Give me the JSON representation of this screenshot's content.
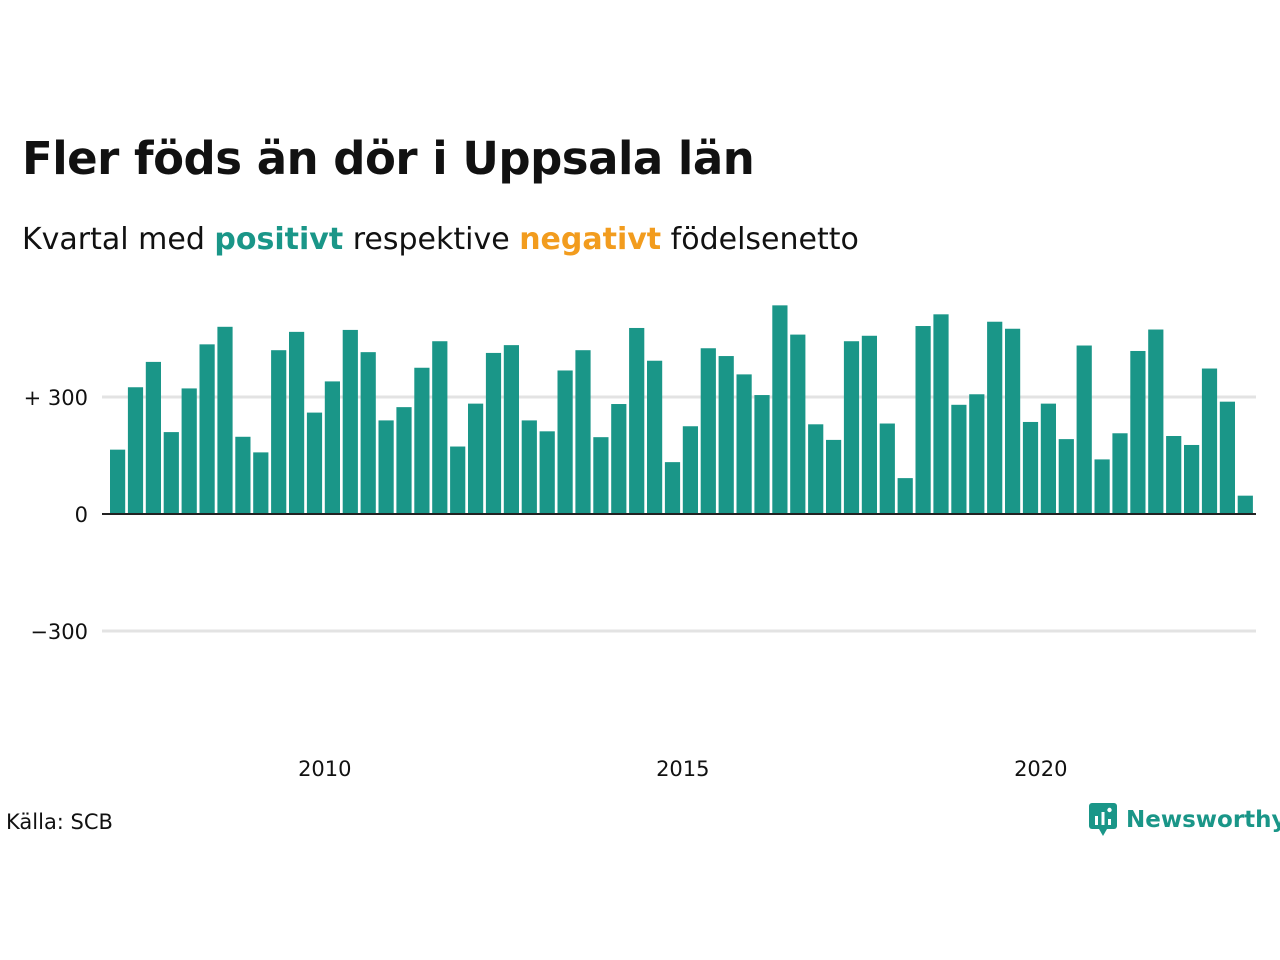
{
  "title": "Fler föds än dör i Uppsala län",
  "subtitle": {
    "prefix": "Kvartal med ",
    "positive": "positivt",
    "middle": " respektive ",
    "negative": "negativt",
    "suffix": " födelsenetto"
  },
  "source": "Källa: SCB",
  "brand": "Newsworthy",
  "colors": {
    "positive": "#1a9688",
    "negative": "#f29c1e",
    "grid": "#e3e3e3",
    "axis": "#222222"
  },
  "chart_data": {
    "type": "bar",
    "title": "Fler föds än dör i Uppsala län",
    "xlabel": "",
    "ylabel": "",
    "ylim": [
      -477,
      477
    ],
    "grid": true,
    "y_ticks": [
      {
        "value": 300,
        "label": "+ 300"
      },
      {
        "value": 0,
        "label": "0"
      },
      {
        "value": -300,
        "label": "−300"
      }
    ],
    "x_ticks": [
      {
        "value": 2010,
        "label": "2010"
      },
      {
        "value": 2015,
        "label": "2015"
      },
      {
        "value": 2020,
        "label": "2020"
      }
    ],
    "categories": [
      "2007 Q1",
      "2007 Q2",
      "2007 Q3",
      "2007 Q4",
      "2008 Q1",
      "2008 Q2",
      "2008 Q3",
      "2008 Q4",
      "2009 Q1",
      "2009 Q2",
      "2009 Q3",
      "2009 Q4",
      "2010 Q1",
      "2010 Q2",
      "2010 Q3",
      "2010 Q4",
      "2011 Q1",
      "2011 Q2",
      "2011 Q3",
      "2011 Q4",
      "2012 Q1",
      "2012 Q2",
      "2012 Q3",
      "2012 Q4",
      "2013 Q1",
      "2013 Q2",
      "2013 Q3",
      "2013 Q4",
      "2014 Q1",
      "2014 Q2",
      "2014 Q3",
      "2014 Q4",
      "2015 Q1",
      "2015 Q2",
      "2015 Q3",
      "2015 Q4",
      "2016 Q1",
      "2016 Q2",
      "2016 Q3",
      "2016 Q4",
      "2017 Q1",
      "2017 Q2",
      "2017 Q3",
      "2017 Q4",
      "2018 Q1",
      "2018 Q2",
      "2018 Q3",
      "2018 Q4",
      "2019 Q1",
      "2019 Q2",
      "2019 Q3",
      "2019 Q4",
      "2020 Q1",
      "2020 Q2",
      "2020 Q3",
      "2020 Q4",
      "2021 Q1",
      "2021 Q2",
      "2021 Q3",
      "2021 Q4",
      "2022 Q1",
      "2022 Q2",
      "2022 Q3",
      "2022 Q4",
      "2023 Q1"
    ],
    "values": [
      165,
      325,
      390,
      210,
      322,
      435,
      480,
      198,
      158,
      420,
      467,
      260,
      340,
      472,
      415,
      240,
      274,
      375,
      443,
      173,
      283,
      413,
      433,
      240,
      212,
      368,
      420,
      197,
      282,
      477,
      393,
      133,
      225,
      425,
      405,
      358,
      305,
      535,
      460,
      230,
      190,
      443,
      457,
      232,
      92,
      482,
      512,
      280,
      307,
      493,
      475,
      236,
      283,
      192,
      432,
      140,
      207,
      418,
      473,
      200,
      177,
      373,
      288,
      47,
      0
    ]
  }
}
